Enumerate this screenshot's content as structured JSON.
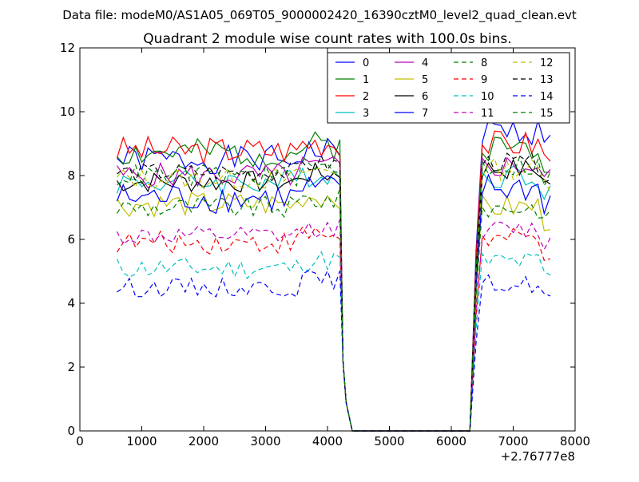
{
  "suptitle": "Data file: modeM0/AS1A05_069T05_9000002420_16390cztM0_level2_quad_clean.evt",
  "chart_data": {
    "type": "line",
    "title": "Quadrant 2 module wise count rates with 100.0s bins.",
    "xlabel": "",
    "ylabel": "",
    "x_offset_label": "+2.76777e8",
    "xlim": [
      0,
      8000
    ],
    "ylim": [
      0,
      12
    ],
    "xticks": [
      0,
      1000,
      2000,
      3000,
      4000,
      5000,
      6000,
      7000,
      8000
    ],
    "yticks": [
      0,
      2,
      4,
      6,
      8,
      10,
      12
    ],
    "grid": false,
    "legend_position": "top-right",
    "legend_columns": 4,
    "gap": {
      "drop_start": 4200,
      "zero_start": 4400,
      "zero_end": 6300,
      "rise_end": 6500
    },
    "series": [
      {
        "name": "0",
        "color": "#0000ff",
        "style": "solid",
        "base": 8.5,
        "amp": 0.45,
        "seed": 1,
        "rise": 9.4
      },
      {
        "name": "1",
        "color": "#008000",
        "style": "solid",
        "base": 8.7,
        "amp": 0.45,
        "seed": 2,
        "rise": 8.9
      },
      {
        "name": "2",
        "color": "#ff0000",
        "style": "solid",
        "base": 8.8,
        "amp": 0.45,
        "seed": 3,
        "rise": 9.0
      },
      {
        "name": "3",
        "color": "#00bfbf",
        "style": "solid",
        "base": 7.8,
        "amp": 0.4,
        "seed": 4,
        "rise": 8.0
      },
      {
        "name": "4",
        "color": "#bf00bf",
        "style": "solid",
        "base": 8.0,
        "amp": 0.4,
        "seed": 5,
        "rise": 8.3
      },
      {
        "name": "5",
        "color": "#bfbf00",
        "style": "solid",
        "base": 7.1,
        "amp": 0.4,
        "seed": 6,
        "rise": 7.0
      },
      {
        "name": "6",
        "color": "#000000",
        "style": "solid",
        "base": 7.8,
        "amp": 0.35,
        "seed": 7,
        "rise": 8.2
      },
      {
        "name": "7",
        "color": "#0000ff",
        "style": "solid",
        "base": 7.3,
        "amp": 0.5,
        "seed": 8,
        "rise": 7.6
      },
      {
        "name": "8",
        "color": "#008000",
        "style": "dashed",
        "base": 7.0,
        "amp": 0.35,
        "seed": 9,
        "rise": 7.0
      },
      {
        "name": "9",
        "color": "#ff0000",
        "style": "dashed",
        "base": 5.9,
        "amp": 0.35,
        "seed": 10,
        "rise": 6.0
      },
      {
        "name": "10",
        "color": "#00bfbf",
        "style": "dashed",
        "base": 5.1,
        "amp": 0.35,
        "seed": 11,
        "rise": 5.3
      },
      {
        "name": "11",
        "color": "#bf00bf",
        "style": "dashed",
        "base": 6.1,
        "amp": 0.3,
        "seed": 12,
        "rise": 6.3
      },
      {
        "name": "12",
        "color": "#bfbf00",
        "style": "dashed",
        "base": 7.9,
        "amp": 0.35,
        "seed": 13,
        "rise": 8.2
      },
      {
        "name": "13",
        "color": "#000000",
        "style": "dashed",
        "base": 8.1,
        "amp": 0.3,
        "seed": 14,
        "rise": 8.4
      },
      {
        "name": "14",
        "color": "#0000ff",
        "style": "dashed",
        "base": 4.5,
        "amp": 0.3,
        "seed": 15,
        "rise": 4.6
      },
      {
        "name": "15",
        "color": "#008000",
        "style": "dashed",
        "base": 8.0,
        "amp": 0.35,
        "seed": 16,
        "rise": 8.3
      }
    ]
  }
}
